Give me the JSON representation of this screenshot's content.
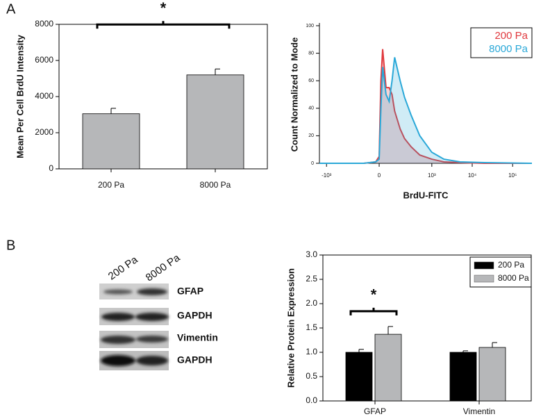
{
  "panel_labels": [
    "A",
    "B"
  ],
  "blot": {
    "lanes": [
      "200 Pa",
      "8000 Pa"
    ],
    "rows": [
      "GFAP",
      "GAPDH",
      "Vimentin",
      "GAPDH"
    ]
  },
  "chart_data": [
    {
      "type": "bar",
      "ylabel": "Mean Per Cell BrdU Intensity",
      "annotation": "*",
      "categories": [
        "200 Pa",
        "8000 Pa"
      ],
      "values": [
        3050,
        5200
      ],
      "errors": [
        300,
        330
      ],
      "color": "#b6b7b9",
      "ylim": [
        0,
        8000
      ],
      "yticks": [
        0,
        2000,
        4000,
        6000,
        8000
      ]
    },
    {
      "type": "line",
      "xlabel": "BrdU-FITC",
      "ylabel": "Count Normalized to Mode",
      "xscale": "biexponential",
      "x": [
        -1500,
        -500,
        -100,
        -20,
        0,
        10,
        20,
        40,
        60,
        80,
        100,
        150,
        200,
        300,
        500,
        1000,
        2000,
        5000,
        20000,
        300000
      ],
      "series": [
        {
          "name": "200 Pa",
          "color": "#e0393e",
          "values": [
            0,
            0,
            0,
            1,
            5,
            60,
            83,
            55,
            55,
            50,
            38,
            25,
            18,
            12,
            6,
            3,
            1,
            0.5,
            0,
            0
          ]
        },
        {
          "name": "8000 Pa",
          "color": "#2aa8d8",
          "values": [
            0,
            0,
            0,
            1,
            3,
            40,
            70,
            50,
            45,
            60,
            77,
            60,
            48,
            35,
            20,
            8,
            3,
            1,
            0.5,
            0
          ]
        }
      ],
      "xlim": [
        -1500,
        300000
      ],
      "xticks": [
        {
          "value": -1000,
          "label": "-10³"
        },
        0,
        {
          "value": 1000,
          "label": "10³"
        },
        {
          "value": 10000,
          "label": "10⁴"
        },
        {
          "value": 100000,
          "label": "10⁵"
        }
      ],
      "ylim": [
        0,
        100
      ],
      "yticks": [
        0,
        20,
        40,
        60,
        80,
        100
      ],
      "legend": "top-right"
    },
    {
      "type": "bar",
      "ylabel": "Relative Protein Expression",
      "annotation": "*",
      "categories": [
        "GFAP",
        "Vimentin"
      ],
      "series": [
        {
          "name": "200 Pa",
          "color": "#000000",
          "values": [
            1.0,
            1.0
          ],
          "errors": [
            0.06,
            0.03
          ]
        },
        {
          "name": "8000 Pa",
          "color": "#b6b7b9",
          "values": [
            1.37,
            1.1
          ],
          "errors": [
            0.16,
            0.1
          ]
        }
      ],
      "ylim": [
        0,
        3
      ],
      "yticks": [
        {
          "value": 0,
          "label": "0.0"
        },
        {
          "value": 0.5,
          "label": "0.5"
        },
        {
          "value": 1,
          "label": "1.0"
        },
        {
          "value": 1.5,
          "label": "1.5"
        },
        {
          "value": 2,
          "label": "2.0"
        },
        {
          "value": 2.5,
          "label": "2.5"
        },
        {
          "value": 3,
          "label": "3.0"
        }
      ],
      "legend": "top-right"
    }
  ]
}
